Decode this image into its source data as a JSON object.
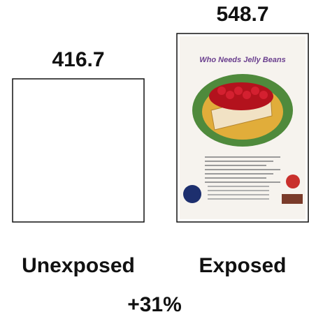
{
  "chart_data": {
    "type": "bar",
    "categories": [
      "Unexposed",
      "Exposed"
    ],
    "values": [
      416.7,
      548.7
    ],
    "annotation": "+31%",
    "annotation_color": "#2e5e1e",
    "poster_text": "Who Needs Jelly Beans"
  }
}
